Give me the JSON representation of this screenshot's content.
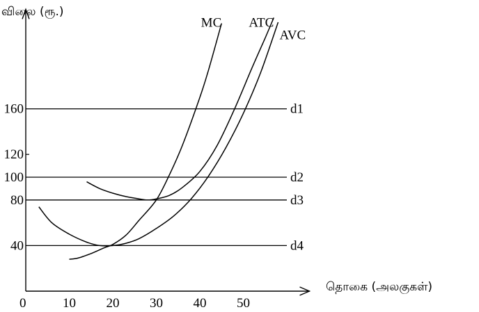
{
  "chart_data": {
    "type": "line",
    "ylabel": "விலை (ரூ.)",
    "xlabel": "தொகை (அலகுகள்)",
    "origin_label": "0",
    "x_ticks": [
      10,
      20,
      30,
      40,
      50
    ],
    "y_ticks": [
      40,
      80,
      100,
      120,
      160
    ],
    "xlim": [
      0,
      62
    ],
    "ylim": [
      0,
      240
    ],
    "grid": false,
    "demand_lines": [
      {
        "label": "d1",
        "y": 160
      },
      {
        "label": "d2",
        "y": 100
      },
      {
        "label": "d3",
        "y": 80
      },
      {
        "label": "d4",
        "y": 40
      }
    ],
    "series": [
      {
        "name": "MC",
        "x": [
          10,
          12,
          15,
          18,
          20,
          23,
          26,
          30,
          33,
          36,
          40,
          42,
          45
        ],
        "y": [
          28,
          29,
          33,
          38,
          41,
          49,
          62,
          80,
          102,
          128,
          170,
          194,
          235
        ]
      },
      {
        "name": "ATC",
        "x": [
          14,
          17,
          20,
          23,
          26,
          28,
          30,
          33,
          36,
          40,
          44,
          48,
          52,
          55,
          57
        ],
        "y": [
          96,
          90,
          86,
          83,
          81,
          80,
          81,
          84,
          91,
          105,
          128,
          160,
          196,
          222,
          240
        ]
      },
      {
        "name": "AVC",
        "x": [
          3,
          6,
          10,
          14,
          17,
          20,
          23,
          26,
          30,
          34,
          38,
          42,
          46,
          50,
          54,
          58
        ],
        "y": [
          74,
          60,
          50,
          43,
          40,
          40,
          42,
          46,
          55,
          66,
          81,
          101,
          126,
          156,
          192,
          236
        ]
      }
    ],
    "series_label_pos": {
      "MC": [
        45,
        232
      ],
      "ATC": [
        57,
        232
      ],
      "AVC": [
        58,
        226
      ]
    }
  }
}
